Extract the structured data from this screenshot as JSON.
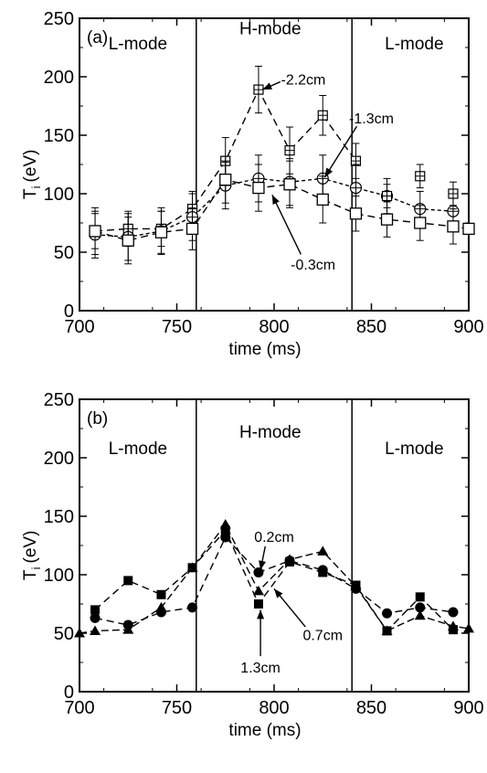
{
  "chart_data": [
    {
      "type": "line",
      "panel_label": "(a)",
      "xlabel": "time (ms)",
      "ylabel_main": "T",
      "ylabel_sub": "i",
      "ylabel_unit": "(eV)",
      "xlim": [
        700,
        900
      ],
      "ylim": [
        0,
        250
      ],
      "xticks": [
        "700",
        "750",
        "800",
        "850",
        "900"
      ],
      "yticks": [
        "0",
        "50",
        "100",
        "150",
        "200",
        "250"
      ],
      "mode_boundaries": [
        760,
        840
      ],
      "mode_labels": [
        "L-mode",
        "H-mode",
        "L-mode"
      ],
      "series": [
        {
          "name": "-2.2cm",
          "marker": "boxplus",
          "x": [
            708,
            725,
            742,
            758,
            775,
            792,
            808,
            825,
            842
          ],
          "y": [
            68,
            70,
            70,
            87,
            128,
            189,
            137,
            167,
            128
          ],
          "err": [
            15,
            15,
            15,
            15,
            20,
            20,
            20,
            17,
            15
          ]
        },
        {
          "name": "-1.3cm",
          "marker": "oplus",
          "x": [
            708,
            725,
            742,
            758,
            775,
            792,
            808,
            825,
            842,
            858,
            875,
            892
          ],
          "y": [
            65,
            63,
            68,
            80,
            107,
            113,
            110,
            113,
            105,
            98,
            87,
            85
          ],
          "err": [
            20,
            20,
            20,
            20,
            20,
            20,
            20,
            20,
            20,
            15,
            15,
            15
          ]
        },
        {
          "name": "-0.3cm",
          "marker": "square-open",
          "x": [
            708,
            725,
            742,
            758,
            775,
            792,
            808,
            825,
            842,
            858,
            875,
            892,
            900
          ],
          "y": [
            68,
            60,
            67,
            70,
            112,
            105,
            108,
            95,
            83,
            78,
            75,
            72,
            70
          ],
          "err": [
            20,
            20,
            18,
            18,
            20,
            20,
            20,
            20,
            15,
            15,
            15,
            15,
            0
          ]
        },
        {
          "name": "",
          "marker": "boxplus",
          "x": [
            858,
            875,
            892
          ],
          "y": [
            98,
            115,
            100
          ],
          "err": [
            10,
            10,
            10
          ]
        }
      ],
      "annotations": [
        {
          "text": "-2.2cm",
          "x": 815,
          "y": 198,
          "target_x": 794,
          "target_y": 189
        },
        {
          "text": "-1.3cm",
          "x": 850,
          "y": 165,
          "target_x": 826,
          "target_y": 114
        },
        {
          "text": "-0.3cm",
          "x": 820,
          "y": 40,
          "target_x": 799,
          "target_y": 99
        }
      ]
    },
    {
      "type": "line",
      "panel_label": "(b)",
      "xlabel": "time (ms)",
      "ylabel_main": "T",
      "ylabel_sub": "i",
      "ylabel_unit": "(eV)",
      "xlim": [
        700,
        900
      ],
      "ylim": [
        0,
        250
      ],
      "xticks": [
        "700",
        "750",
        "800",
        "850",
        "900"
      ],
      "yticks": [
        "0",
        "50",
        "100",
        "150",
        "200",
        "250"
      ],
      "mode_boundaries": [
        760,
        840
      ],
      "mode_labels": [
        "L-mode",
        "H-mode",
        "L-mode"
      ],
      "series": [
        {
          "name": "0.2cm",
          "marker": "circle",
          "x": [
            708,
            725,
            742,
            758,
            775,
            792,
            808,
            825,
            842,
            858,
            875,
            892
          ],
          "y": [
            63,
            57,
            68,
            72,
            132,
            102,
            112,
            104,
            88,
            67,
            72,
            68
          ]
        },
        {
          "name": "0.7cm",
          "marker": "triangle",
          "x": [
            700,
            708,
            725,
            742,
            758,
            775,
            792,
            808,
            825,
            842,
            858,
            875,
            892,
            900
          ],
          "y": [
            50,
            52,
            53,
            72,
            106,
            143,
            86,
            113,
            120,
            90,
            52,
            65,
            56,
            54
          ]
        },
        {
          "name": "1.3cm",
          "marker": "square",
          "x": [
            708,
            725,
            742,
            758,
            775,
            792,
            808,
            825,
            842,
            858,
            875,
            892
          ],
          "y": [
            70,
            95,
            83,
            106,
            138,
            75,
            111,
            102,
            91,
            52,
            81,
            53
          ]
        }
      ],
      "annotations": [
        {
          "text": "0.2cm",
          "x": 800,
          "y": 133,
          "target_x": 793,
          "target_y": 104
        },
        {
          "text": "0.7cm",
          "x": 825,
          "y": 49,
          "target_x": 800,
          "target_y": 88
        },
        {
          "text": "1.3cm",
          "x": 793,
          "y": 21,
          "target_x": 793,
          "target_y": 70
        }
      ]
    }
  ]
}
